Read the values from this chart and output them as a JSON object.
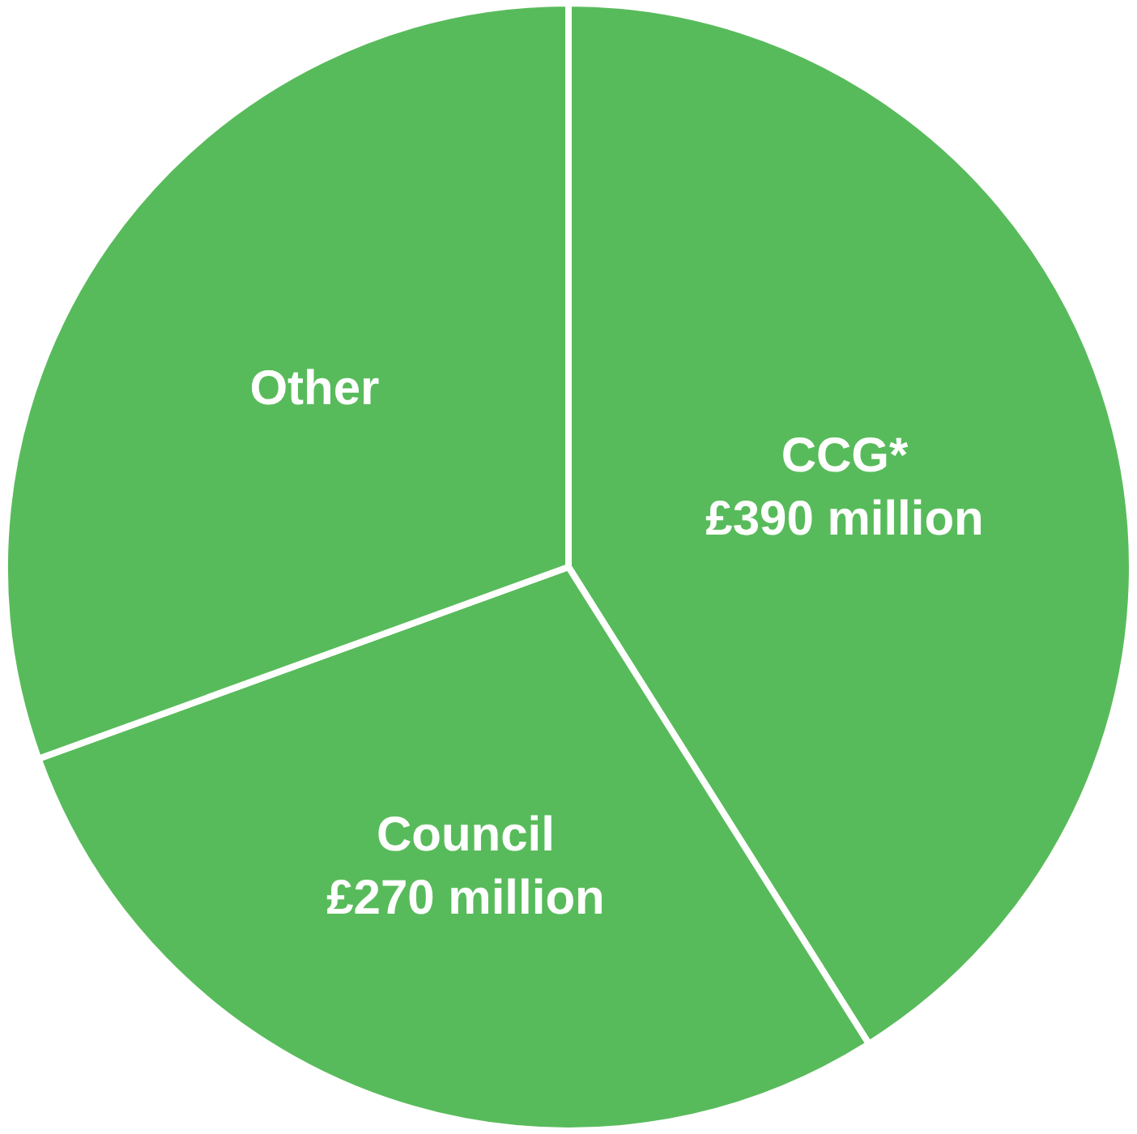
{
  "chart_data": {
    "type": "pie",
    "categories": [
      "CCG*",
      "Council",
      "Other"
    ],
    "values": [
      390,
      270,
      290
    ],
    "value_labels": [
      "£390 million",
      "£270 million",
      null
    ],
    "colors": [
      "#58bb5b",
      "#58bb5b",
      "#58bb5b"
    ],
    "legend": false
  }
}
